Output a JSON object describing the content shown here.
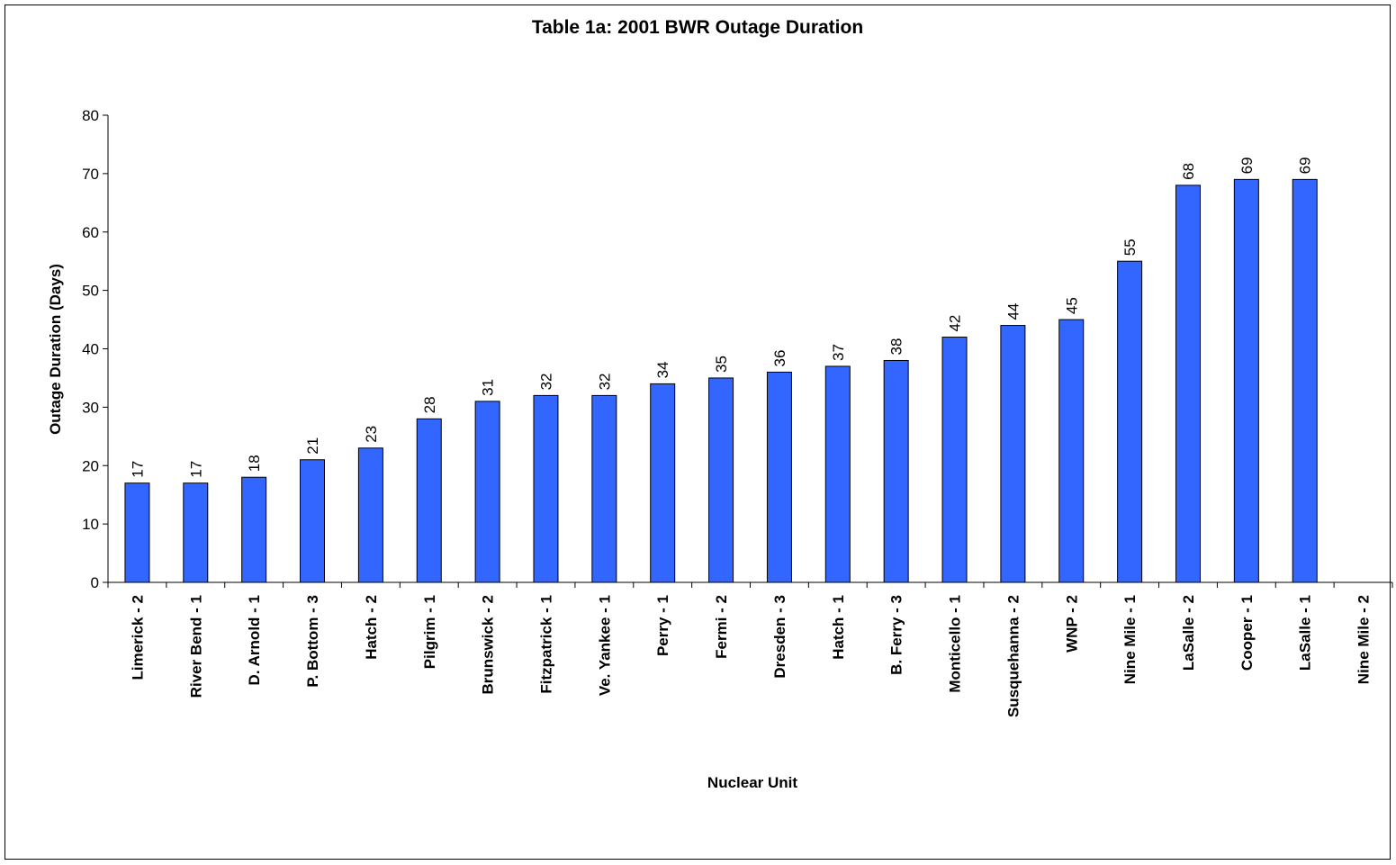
{
  "chart_data": {
    "type": "bar",
    "title": "Table 1a: 2001 BWR Outage Duration",
    "xlabel": "Nuclear Unit",
    "ylabel": "Outage Duration (Days)",
    "ylim": [
      0,
      80
    ],
    "yticks": [
      0,
      10,
      20,
      30,
      40,
      50,
      60,
      70,
      80
    ],
    "grid": false,
    "legend": "none",
    "bar_color": "#3366ff",
    "categories": [
      "Limerick - 2",
      "River Bend - 1",
      "D. Arnold - 1",
      "P. Bottom - 3",
      "Hatch - 2",
      "Pilgrim - 1",
      "Brunswick - 2",
      "Fitzpatrick - 1",
      "Ve. Yankee - 1",
      "Perry - 1",
      "Fermi - 2",
      "Dresden - 3",
      "Hatch - 1",
      "B. Ferry - 3",
      "Monticello - 1",
      "Susquehanna - 2",
      "WNP - 2",
      "Nine Mile - 1",
      "LaSalle - 2",
      "Cooper - 1",
      "LaSalle - 1",
      "Nine Mile - 2"
    ],
    "values": [
      17,
      17,
      18,
      21,
      23,
      28,
      31,
      32,
      32,
      34,
      35,
      36,
      37,
      38,
      42,
      44,
      45,
      55,
      68,
      69,
      69,
      null
    ]
  }
}
